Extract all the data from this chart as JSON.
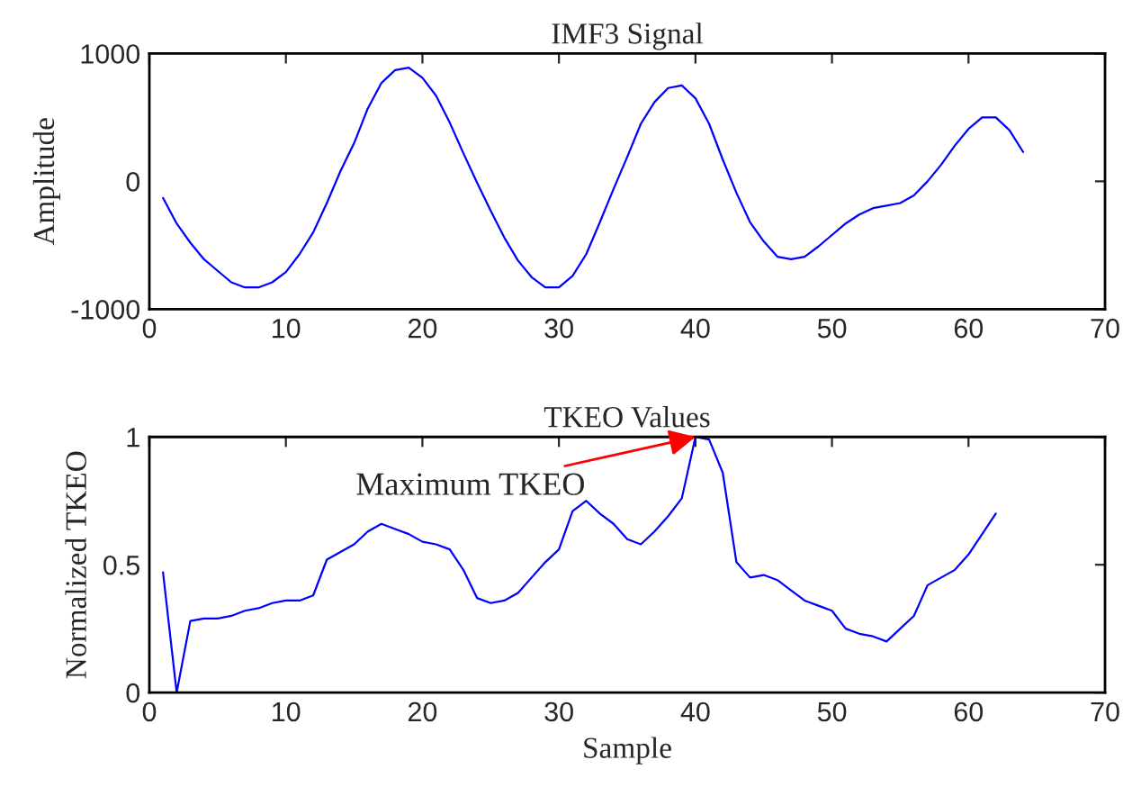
{
  "chart_data": [
    {
      "type": "line",
      "title": "IMF3 Signal",
      "ylabel": "Amplitude",
      "xlim": [
        0,
        70
      ],
      "xticks": [
        0,
        10,
        20,
        30,
        40,
        50,
        60,
        70
      ],
      "ylim": [
        -1000,
        1000
      ],
      "yticks": [
        -1000,
        0,
        1000
      ],
      "x": [
        1,
        2,
        3,
        4,
        5,
        6,
        7,
        8,
        9,
        10,
        11,
        12,
        13,
        14,
        15,
        16,
        17,
        18,
        19,
        20,
        21,
        22,
        23,
        24,
        25,
        26,
        27,
        28,
        29,
        30,
        31,
        32,
        33,
        34,
        35,
        36,
        37,
        38,
        39,
        40,
        41,
        42,
        43,
        44,
        45,
        46,
        47,
        48,
        49,
        50,
        51,
        52,
        53,
        54,
        55,
        56,
        57,
        58,
        59,
        60,
        61,
        62,
        63,
        64
      ],
      "series": [
        {
          "color": "#0000ff",
          "values": [
            -130,
            -330,
            -480,
            -610,
            -700,
            -790,
            -830,
            -830,
            -790,
            -710,
            -570,
            -400,
            -170,
            80,
            300,
            570,
            770,
            870,
            890,
            810,
            670,
            460,
            220,
            -10,
            -230,
            -440,
            -620,
            -750,
            -830,
            -830,
            -740,
            -570,
            -320,
            -60,
            190,
            450,
            620,
            730,
            750,
            650,
            450,
            170,
            -90,
            -320,
            -470,
            -590,
            -610,
            -590,
            -510,
            -420,
            -330,
            -260,
            -210,
            -190,
            -170,
            -110,
            0,
            130,
            280,
            410,
            500,
            500,
            400,
            230
          ]
        }
      ]
    },
    {
      "type": "line",
      "title": "TKEO Values",
      "xlabel": "Sample",
      "ylabel": "Normalized TKEO",
      "xlim": [
        0,
        70
      ],
      "xticks": [
        0,
        10,
        20,
        30,
        40,
        50,
        60,
        70
      ],
      "ylim": [
        0,
        1
      ],
      "yticks": [
        0,
        0.5,
        1
      ],
      "annotations": [
        {
          "text": "Maximum TKEO",
          "x": 40,
          "y": 1
        }
      ],
      "x": [
        1,
        2,
        3,
        4,
        5,
        6,
        7,
        8,
        9,
        10,
        11,
        12,
        13,
        14,
        15,
        16,
        17,
        18,
        19,
        20,
        21,
        22,
        23,
        24,
        25,
        26,
        27,
        28,
        29,
        30,
        31,
        32,
        33,
        34,
        35,
        36,
        37,
        38,
        39,
        40,
        41,
        42,
        43,
        44,
        45,
        46,
        47,
        48,
        49,
        50,
        51,
        52,
        53,
        54,
        55,
        56,
        57,
        58,
        59,
        60,
        61,
        62
      ],
      "series": [
        {
          "color": "#0000ff",
          "values": [
            0.47,
            0,
            0.28,
            0.29,
            0.29,
            0.3,
            0.32,
            0.33,
            0.35,
            0.36,
            0.36,
            0.38,
            0.52,
            0.55,
            0.58,
            0.63,
            0.66,
            0.64,
            0.62,
            0.59,
            0.58,
            0.56,
            0.48,
            0.37,
            0.35,
            0.36,
            0.39,
            0.45,
            0.51,
            0.56,
            0.71,
            0.75,
            0.7,
            0.66,
            0.6,
            0.58,
            0.63,
            0.69,
            0.76,
            1.0,
            0.99,
            0.86,
            0.51,
            0.45,
            0.46,
            0.44,
            0.4,
            0.36,
            0.34,
            0.32,
            0.25,
            0.23,
            0.22,
            0.2,
            0.25,
            0.3,
            0.42,
            0.45,
            0.48,
            0.54,
            0.62,
            0.7
          ]
        }
      ]
    }
  ]
}
